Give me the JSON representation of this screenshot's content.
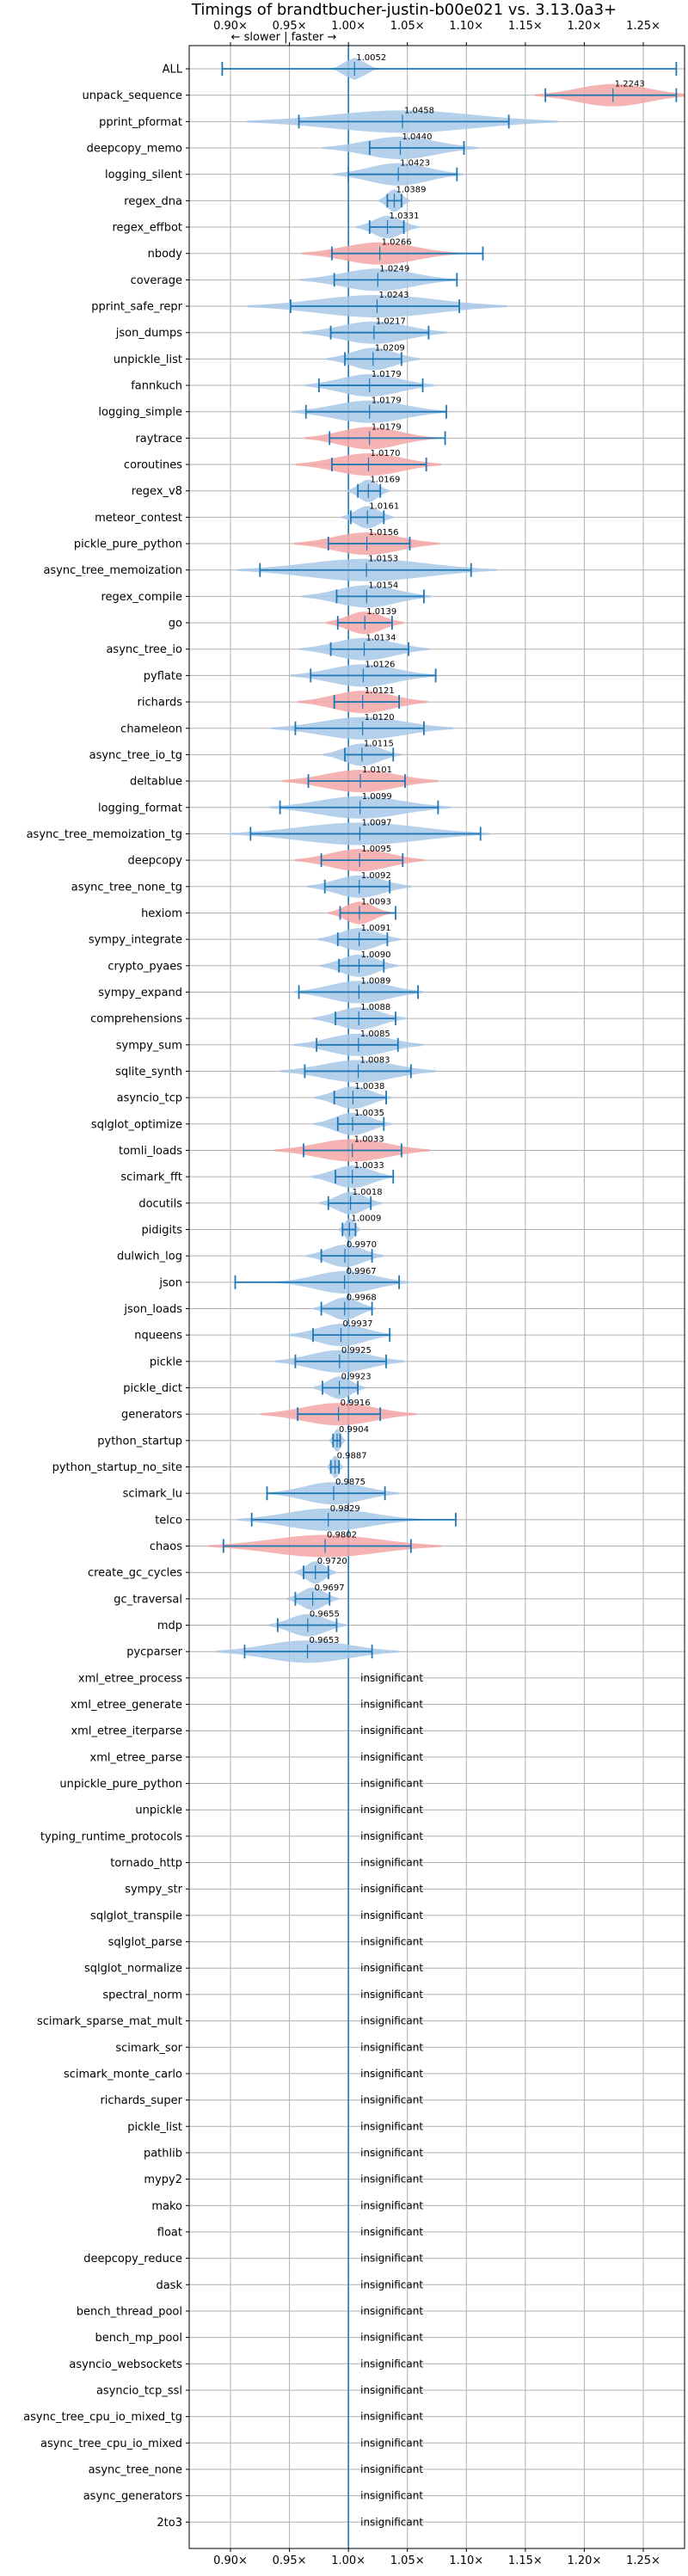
{
  "chart_data": {
    "type": "violin",
    "title": "Timings of brandtbucher-justin-b00e021 vs. 3.13.0a3+",
    "direction_label": "← slower | faster →",
    "xlim": [
      0.865,
      1.285
    ],
    "xticks": [
      0.9,
      0.95,
      1.0,
      1.05,
      1.1,
      1.15,
      1.2,
      1.25
    ],
    "xtick_labels": [
      "0.90×",
      "0.95×",
      "1.00×",
      "1.05×",
      "1.10×",
      "1.15×",
      "1.20×",
      "1.25×"
    ],
    "reference_line": 1.0,
    "grid": true,
    "colors": {
      "faster": "#a8c8e8",
      "slower": "#f4a6a6",
      "line": "#1f77b4"
    },
    "insignificant_label": "insignificant",
    "benchmarks": [
      {
        "name": "ALL",
        "value": 1.0052,
        "low": 0.893,
        "high": 1.278,
        "width": 0.008,
        "color": "faster",
        "show_value": true
      },
      {
        "name": "unpack_sequence",
        "value": 1.2243,
        "low": 1.167,
        "high": 1.278,
        "width": 0.03,
        "color": "slower",
        "show_value": true
      },
      {
        "name": "pprint_pformat",
        "value": 1.0458,
        "low": 0.958,
        "high": 1.136,
        "width": 0.06,
        "color": "faster",
        "show_value": true
      },
      {
        "name": "deepcopy_memo",
        "value": 1.044,
        "low": 1.018,
        "high": 1.098,
        "width": 0.03,
        "color": "faster",
        "show_value": true
      },
      {
        "name": "logging_silent",
        "value": 1.0423,
        "low": 1.0,
        "high": 1.092,
        "width": 0.025,
        "color": "faster",
        "show_value": true
      },
      {
        "name": "regex_dna",
        "value": 1.0389,
        "low": 1.033,
        "high": 1.045,
        "width": 0.006,
        "color": "faster",
        "show_value": true
      },
      {
        "name": "regex_effbot",
        "value": 1.0331,
        "low": 1.018,
        "high": 1.047,
        "width": 0.012,
        "color": "faster",
        "show_value": true
      },
      {
        "name": "nbody",
        "value": 1.0266,
        "low": 0.986,
        "high": 1.114,
        "width": 0.03,
        "color": "slower",
        "show_value": true
      },
      {
        "name": "coverage",
        "value": 1.0249,
        "low": 0.988,
        "high": 1.092,
        "width": 0.03,
        "color": "faster",
        "show_value": true
      },
      {
        "name": "pprint_safe_repr",
        "value": 1.0243,
        "low": 0.951,
        "high": 1.094,
        "width": 0.05,
        "color": "faster",
        "show_value": true
      },
      {
        "name": "json_dumps",
        "value": 1.0217,
        "low": 0.985,
        "high": 1.068,
        "width": 0.028,
        "color": "faster",
        "show_value": true
      },
      {
        "name": "unpickle_list",
        "value": 1.0209,
        "low": 0.997,
        "high": 1.045,
        "width": 0.018,
        "color": "faster",
        "show_value": true
      },
      {
        "name": "fannkuch",
        "value": 1.0179,
        "low": 0.975,
        "high": 1.063,
        "width": 0.025,
        "color": "faster",
        "show_value": true
      },
      {
        "name": "logging_simple",
        "value": 1.0179,
        "low": 0.964,
        "high": 1.083,
        "width": 0.03,
        "color": "faster",
        "show_value": true
      },
      {
        "name": "raytrace",
        "value": 1.0179,
        "low": 0.984,
        "high": 1.082,
        "width": 0.025,
        "color": "slower",
        "show_value": true
      },
      {
        "name": "coroutines",
        "value": 1.017,
        "low": 0.986,
        "high": 1.066,
        "width": 0.028,
        "color": "slower",
        "show_value": true
      },
      {
        "name": "regex_v8",
        "value": 1.0169,
        "low": 1.008,
        "high": 1.027,
        "width": 0.008,
        "color": "faster",
        "show_value": true
      },
      {
        "name": "meteor_contest",
        "value": 1.0161,
        "low": 1.002,
        "high": 1.03,
        "width": 0.01,
        "color": "faster",
        "show_value": true
      },
      {
        "name": "pickle_pure_python",
        "value": 1.0156,
        "low": 0.983,
        "high": 1.052,
        "width": 0.028,
        "color": "slower",
        "show_value": true
      },
      {
        "name": "async_tree_memoization",
        "value": 1.0153,
        "low": 0.925,
        "high": 1.104,
        "width": 0.05,
        "color": "faster",
        "show_value": true
      },
      {
        "name": "regex_compile",
        "value": 1.0154,
        "low": 0.99,
        "high": 1.064,
        "width": 0.025,
        "color": "faster",
        "show_value": true
      },
      {
        "name": "go",
        "value": 1.0139,
        "low": 0.991,
        "high": 1.037,
        "width": 0.015,
        "color": "slower",
        "show_value": true
      },
      {
        "name": "async_tree_io",
        "value": 1.0134,
        "low": 0.985,
        "high": 1.051,
        "width": 0.025,
        "color": "faster",
        "show_value": true
      },
      {
        "name": "pyflate",
        "value": 1.0126,
        "low": 0.968,
        "high": 1.074,
        "width": 0.028,
        "color": "faster",
        "show_value": true
      },
      {
        "name": "richards",
        "value": 1.0121,
        "low": 0.988,
        "high": 1.043,
        "width": 0.025,
        "color": "slower",
        "show_value": true
      },
      {
        "name": "chameleon",
        "value": 1.012,
        "low": 0.955,
        "high": 1.064,
        "width": 0.035,
        "color": "faster",
        "show_value": true
      },
      {
        "name": "async_tree_io_tg",
        "value": 1.0115,
        "low": 0.997,
        "high": 1.038,
        "width": 0.015,
        "color": "faster",
        "show_value": true
      },
      {
        "name": "deltablue",
        "value": 1.0101,
        "low": 0.966,
        "high": 1.048,
        "width": 0.03,
        "color": "slower",
        "show_value": true
      },
      {
        "name": "logging_format",
        "value": 1.0099,
        "low": 0.942,
        "high": 1.076,
        "width": 0.035,
        "color": "faster",
        "show_value": true
      },
      {
        "name": "async_tree_memoization_tg",
        "value": 1.0097,
        "low": 0.917,
        "high": 1.112,
        "width": 0.05,
        "color": "faster",
        "show_value": true
      },
      {
        "name": "deepcopy",
        "value": 1.0095,
        "low": 0.977,
        "high": 1.046,
        "width": 0.025,
        "color": "slower",
        "show_value": true
      },
      {
        "name": "async_tree_none_tg",
        "value": 1.0092,
        "low": 0.98,
        "high": 1.035,
        "width": 0.02,
        "color": "faster",
        "show_value": true
      },
      {
        "name": "hexiom",
        "value": 1.0093,
        "low": 0.993,
        "high": 1.04,
        "width": 0.012,
        "color": "slower",
        "show_value": true
      },
      {
        "name": "sympy_integrate",
        "value": 1.0091,
        "low": 0.991,
        "high": 1.033,
        "width": 0.016,
        "color": "faster",
        "show_value": true
      },
      {
        "name": "crypto_pyaes",
        "value": 1.009,
        "low": 0.992,
        "high": 1.03,
        "width": 0.015,
        "color": "faster",
        "show_value": true
      },
      {
        "name": "sympy_expand",
        "value": 1.0089,
        "low": 0.958,
        "high": 1.059,
        "width": 0.025,
        "color": "faster",
        "show_value": true
      },
      {
        "name": "comprehensions",
        "value": 1.0088,
        "low": 0.989,
        "high": 1.04,
        "width": 0.018,
        "color": "faster",
        "show_value": true
      },
      {
        "name": "sympy_sum",
        "value": 1.0085,
        "low": 0.973,
        "high": 1.042,
        "width": 0.025,
        "color": "faster",
        "show_value": true
      },
      {
        "name": "sqlite_synth",
        "value": 1.0083,
        "low": 0.963,
        "high": 1.053,
        "width": 0.03,
        "color": "faster",
        "show_value": true
      },
      {
        "name": "asyncio_tcp",
        "value": 1.0038,
        "low": 0.988,
        "high": 1.032,
        "width": 0.015,
        "color": "faster",
        "show_value": true
      },
      {
        "name": "sqlglot_optimize",
        "value": 1.0035,
        "low": 0.991,
        "high": 1.03,
        "width": 0.015,
        "color": "faster",
        "show_value": true
      },
      {
        "name": "tomli_loads",
        "value": 1.0033,
        "low": 0.962,
        "high": 1.045,
        "width": 0.03,
        "color": "slower",
        "show_value": true
      },
      {
        "name": "scimark_fft",
        "value": 1.0033,
        "low": 0.989,
        "high": 1.038,
        "width": 0.016,
        "color": "faster",
        "show_value": true
      },
      {
        "name": "docutils",
        "value": 1.0018,
        "low": 0.983,
        "high": 1.019,
        "width": 0.012,
        "color": "faster",
        "show_value": true
      },
      {
        "name": "pidigits",
        "value": 1.0009,
        "low": 0.995,
        "high": 1.006,
        "width": 0.004,
        "color": "faster",
        "show_value": true
      },
      {
        "name": "dulwich_log",
        "value": 0.997,
        "low": 0.977,
        "high": 1.02,
        "width": 0.015,
        "color": "faster",
        "show_value": true
      },
      {
        "name": "json",
        "value": 0.9967,
        "low": 0.904,
        "high": 1.043,
        "width": 0.025,
        "color": "faster",
        "show_value": true
      },
      {
        "name": "json_loads",
        "value": 0.9968,
        "low": 0.977,
        "high": 1.02,
        "width": 0.012,
        "color": "faster",
        "show_value": true
      },
      {
        "name": "nqueens",
        "value": 0.9937,
        "low": 0.97,
        "high": 1.035,
        "width": 0.02,
        "color": "faster",
        "show_value": true
      },
      {
        "name": "pickle",
        "value": 0.9925,
        "low": 0.955,
        "high": 1.032,
        "width": 0.025,
        "color": "faster",
        "show_value": true
      },
      {
        "name": "pickle_dict",
        "value": 0.9923,
        "low": 0.978,
        "high": 1.008,
        "width": 0.01,
        "color": "faster",
        "show_value": true
      },
      {
        "name": "generators",
        "value": 0.9916,
        "low": 0.957,
        "high": 1.027,
        "width": 0.03,
        "color": "slower",
        "show_value": true
      },
      {
        "name": "python_startup",
        "value": 0.9904,
        "low": 0.987,
        "high": 0.993,
        "width": 0.003,
        "color": "faster",
        "show_value": true
      },
      {
        "name": "python_startup_no_site",
        "value": 0.9887,
        "low": 0.985,
        "high": 0.992,
        "width": 0.003,
        "color": "faster",
        "show_value": true
      },
      {
        "name": "scimark_lu",
        "value": 0.9875,
        "low": 0.931,
        "high": 1.031,
        "width": 0.025,
        "color": "faster",
        "show_value": true
      },
      {
        "name": "telco",
        "value": 0.9829,
        "low": 0.918,
        "high": 1.091,
        "width": 0.035,
        "color": "faster",
        "show_value": true
      },
      {
        "name": "chaos",
        "value": 0.9802,
        "low": 0.894,
        "high": 1.053,
        "width": 0.045,
        "color": "slower",
        "show_value": true
      },
      {
        "name": "create_gc_cycles",
        "value": 0.972,
        "low": 0.962,
        "high": 0.983,
        "width": 0.008,
        "color": "faster",
        "show_value": true
      },
      {
        "name": "gc_traversal",
        "value": 0.9697,
        "low": 0.955,
        "high": 0.984,
        "width": 0.01,
        "color": "faster",
        "show_value": true
      },
      {
        "name": "mdp",
        "value": 0.9655,
        "low": 0.94,
        "high": 0.99,
        "width": 0.015,
        "color": "faster",
        "show_value": true
      },
      {
        "name": "pycparser",
        "value": 0.9653,
        "low": 0.912,
        "high": 1.02,
        "width": 0.035,
        "color": "faster",
        "show_value": true
      },
      {
        "name": "xml_etree_process",
        "insignificant": true
      },
      {
        "name": "xml_etree_generate",
        "insignificant": true
      },
      {
        "name": "xml_etree_iterparse",
        "insignificant": true
      },
      {
        "name": "xml_etree_parse",
        "insignificant": true
      },
      {
        "name": "unpickle_pure_python",
        "insignificant": true
      },
      {
        "name": "unpickle",
        "insignificant": true
      },
      {
        "name": "typing_runtime_protocols",
        "insignificant": true
      },
      {
        "name": "tornado_http",
        "insignificant": true
      },
      {
        "name": "sympy_str",
        "insignificant": true
      },
      {
        "name": "sqlglot_transpile",
        "insignificant": true
      },
      {
        "name": "sqlglot_parse",
        "insignificant": true
      },
      {
        "name": "sqlglot_normalize",
        "insignificant": true
      },
      {
        "name": "spectral_norm",
        "insignificant": true
      },
      {
        "name": "scimark_sparse_mat_mult",
        "insignificant": true
      },
      {
        "name": "scimark_sor",
        "insignificant": true
      },
      {
        "name": "scimark_monte_carlo",
        "insignificant": true
      },
      {
        "name": "richards_super",
        "insignificant": true
      },
      {
        "name": "pickle_list",
        "insignificant": true
      },
      {
        "name": "pathlib",
        "insignificant": true
      },
      {
        "name": "mypy2",
        "insignificant": true
      },
      {
        "name": "mako",
        "insignificant": true
      },
      {
        "name": "float",
        "insignificant": true
      },
      {
        "name": "deepcopy_reduce",
        "insignificant": true
      },
      {
        "name": "dask",
        "insignificant": true
      },
      {
        "name": "bench_thread_pool",
        "insignificant": true
      },
      {
        "name": "bench_mp_pool",
        "insignificant": true
      },
      {
        "name": "asyncio_websockets",
        "insignificant": true
      },
      {
        "name": "asyncio_tcp_ssl",
        "insignificant": true
      },
      {
        "name": "async_tree_cpu_io_mixed_tg",
        "insignificant": true
      },
      {
        "name": "async_tree_cpu_io_mixed",
        "insignificant": true
      },
      {
        "name": "async_tree_none",
        "insignificant": true
      },
      {
        "name": "async_generators",
        "insignificant": true
      },
      {
        "name": "2to3",
        "insignificant": true
      }
    ]
  }
}
